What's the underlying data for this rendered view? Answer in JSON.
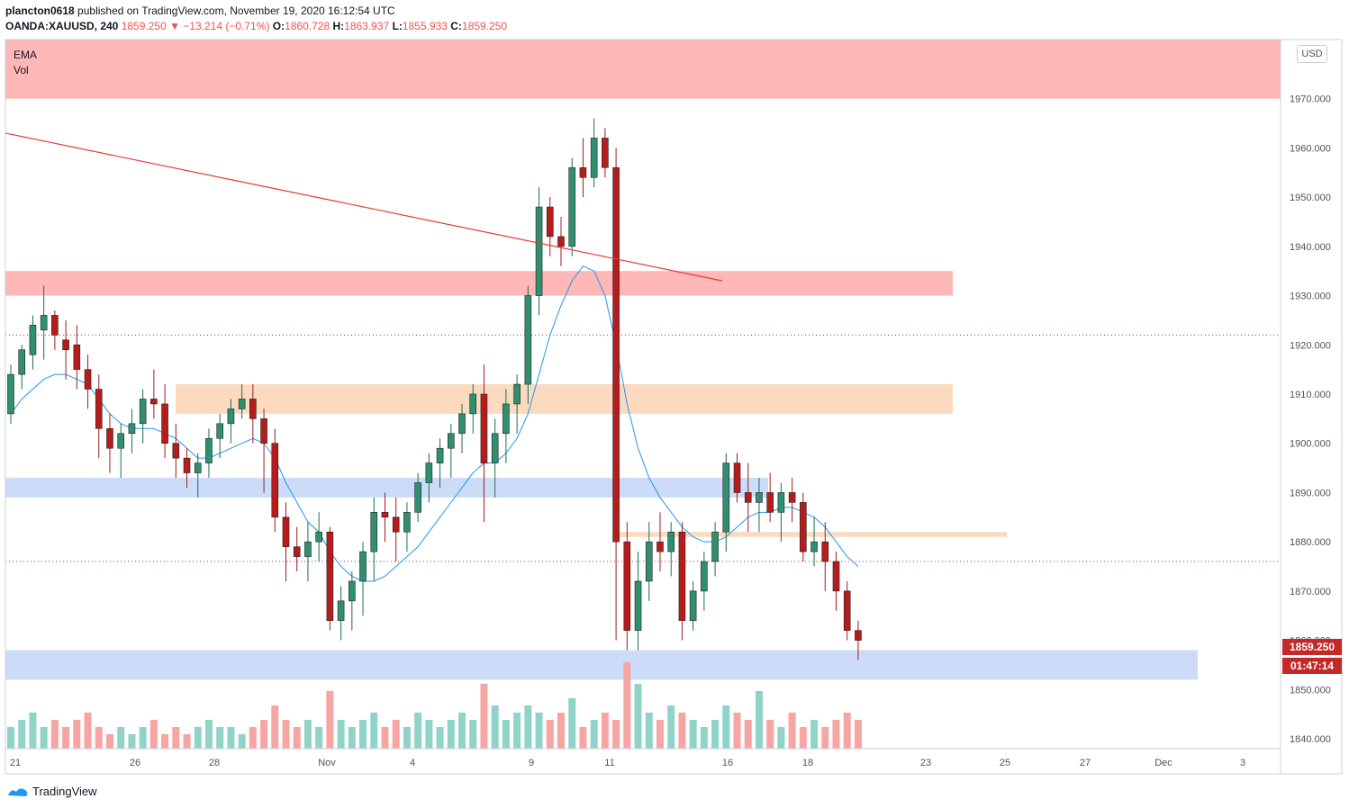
{
  "header": {
    "user": "plancton0618",
    "published": "published on TradingView.com, November 19, 2020 16:12:54 UTC",
    "symbol": "OANDA:XAUUSD, 240",
    "last": "1859.250",
    "change": "▼ −13.214 (−0.71%)",
    "o_label": "O:",
    "o_value": "1860.728",
    "h_label": "H:",
    "h_value": "1863.937",
    "l_label": "L:",
    "l_value": "1855.933",
    "c_label": "C:",
    "c_value": "1859.250"
  },
  "legend": {
    "ema": "EMA",
    "vol": "Vol"
  },
  "currency_button": "USD",
  "price_tag": "1859.250",
  "timer_tag": "01:47:14",
  "brand": "TradingView",
  "colors": {
    "up": "#26a69a",
    "down": "#ef5350",
    "ema": "#2196f3"
  },
  "chart_data": {
    "type": "candlestick",
    "timeframe": "240",
    "ylim": [
      1838,
      1982
    ],
    "yticks": [
      "1970.000",
      "1960.000",
      "1950.000",
      "1940.000",
      "1930.000",
      "1920.000",
      "1910.000",
      "1900.000",
      "1890.000",
      "1880.000",
      "1870.000",
      "1860.000",
      "1850.000",
      "1840.000"
    ],
    "xticks": [
      "21",
      "26",
      "28",
      "Nov",
      "4",
      "9",
      "11",
      "16",
      "18",
      "23",
      "25",
      "27",
      "Dec",
      "3"
    ],
    "candles": [
      [
        1906,
        1916,
        1904,
        1914
      ],
      [
        1914,
        1920,
        1911,
        1919
      ],
      [
        1918,
        1926,
        1915,
        1924
      ],
      [
        1923,
        1932,
        1917,
        1926
      ],
      [
        1926,
        1927,
        1919,
        1922
      ],
      [
        1921,
        1925,
        1913,
        1919
      ],
      [
        1920,
        1924,
        1911,
        1915
      ],
      [
        1915,
        1918,
        1907,
        1911
      ],
      [
        1911,
        1914,
        1897,
        1903
      ],
      [
        1903,
        1906,
        1894,
        1899
      ],
      [
        1899,
        1904,
        1893,
        1902
      ],
      [
        1902,
        1907,
        1898,
        1904
      ],
      [
        1904,
        1911,
        1900,
        1909
      ],
      [
        1909,
        1915,
        1905,
        1908
      ],
      [
        1908,
        1912,
        1897,
        1900
      ],
      [
        1900,
        1904,
        1893,
        1897
      ],
      [
        1897,
        1899,
        1891,
        1894
      ],
      [
        1894,
        1898,
        1889,
        1896
      ],
      [
        1896,
        1903,
        1893,
        1901
      ],
      [
        1901,
        1906,
        1897,
        1904
      ],
      [
        1904,
        1909,
        1900,
        1907
      ],
      [
        1907,
        1912,
        1905,
        1909
      ],
      [
        1909,
        1912,
        1900,
        1905
      ],
      [
        1905,
        1907,
        1890,
        1900
      ],
      [
        1900,
        1903,
        1882,
        1885
      ],
      [
        1885,
        1888,
        1872,
        1879
      ],
      [
        1879,
        1883,
        1874,
        1877
      ],
      [
        1877,
        1884,
        1872,
        1880
      ],
      [
        1880,
        1886,
        1876,
        1882
      ],
      [
        1882,
        1883,
        1862,
        1864
      ],
      [
        1864,
        1871,
        1860,
        1868
      ],
      [
        1868,
        1874,
        1862,
        1872
      ],
      [
        1872,
        1880,
        1865,
        1878
      ],
      [
        1878,
        1889,
        1872,
        1886
      ],
      [
        1886,
        1890,
        1880,
        1885
      ],
      [
        1885,
        1889,
        1876,
        1882
      ],
      [
        1882,
        1888,
        1878,
        1886
      ],
      [
        1886,
        1894,
        1884,
        1892
      ],
      [
        1892,
        1898,
        1888,
        1896
      ],
      [
        1896,
        1901,
        1891,
        1899
      ],
      [
        1899,
        1904,
        1893,
        1902
      ],
      [
        1902,
        1908,
        1898,
        1906
      ],
      [
        1906,
        1912,
        1902,
        1910
      ],
      [
        1910,
        1916,
        1884,
        1896
      ],
      [
        1896,
        1905,
        1889,
        1902
      ],
      [
        1902,
        1911,
        1896,
        1908
      ],
      [
        1908,
        1914,
        1902,
        1912
      ],
      [
        1912,
        1932,
        1908,
        1930
      ],
      [
        1930,
        1952,
        1926,
        1948
      ],
      [
        1948,
        1950,
        1938,
        1942
      ],
      [
        1942,
        1946,
        1936,
        1940
      ],
      [
        1940,
        1958,
        1938,
        1956
      ],
      [
        1956,
        1962,
        1950,
        1954
      ],
      [
        1954,
        1966,
        1952,
        1962
      ],
      [
        1962,
        1964,
        1954,
        1956
      ],
      [
        1956,
        1960,
        1860,
        1880
      ],
      [
        1880,
        1884,
        1858,
        1862
      ],
      [
        1862,
        1878,
        1858,
        1872
      ],
      [
        1872,
        1884,
        1868,
        1880
      ],
      [
        1880,
        1886,
        1874,
        1878
      ],
      [
        1878,
        1884,
        1873,
        1882
      ],
      [
        1882,
        1884,
        1860,
        1864
      ],
      [
        1864,
        1872,
        1862,
        1870
      ],
      [
        1870,
        1878,
        1866,
        1876
      ],
      [
        1876,
        1884,
        1873,
        1882
      ],
      [
        1882,
        1898,
        1878,
        1896
      ],
      [
        1896,
        1898,
        1888,
        1890
      ],
      [
        1890,
        1896,
        1882,
        1888
      ],
      [
        1888,
        1893,
        1882,
        1890
      ],
      [
        1890,
        1894,
        1884,
        1886
      ],
      [
        1886,
        1892,
        1880,
        1890
      ],
      [
        1890,
        1893,
        1884,
        1888
      ],
      [
        1888,
        1890,
        1876,
        1878
      ],
      [
        1878,
        1885,
        1875,
        1880
      ],
      [
        1880,
        1884,
        1870,
        1876
      ],
      [
        1876,
        1878,
        1866,
        1870
      ],
      [
        1870,
        1872,
        1860,
        1862
      ],
      [
        1862,
        1864,
        1856,
        1860
      ]
    ],
    "ema": [
      1906,
      1909,
      1911,
      1913,
      1914,
      1914,
      1913,
      1912,
      1909,
      1906,
      1904,
      1903,
      1903,
      1903,
      1902,
      1901,
      1899,
      1897,
      1897,
      1898,
      1899,
      1900,
      1901,
      1900,
      1897,
      1892,
      1888,
      1884,
      1882,
      1878,
      1875,
      1873,
      1872,
      1872,
      1873,
      1875,
      1877,
      1879,
      1882,
      1885,
      1888,
      1891,
      1894,
      1896,
      1896,
      1898,
      1901,
      1906,
      1914,
      1922,
      1928,
      1933,
      1936,
      1935,
      1930,
      1920,
      1908,
      1899,
      1893,
      1889,
      1886,
      1883,
      1881,
      1880,
      1880,
      1881,
      1883,
      1885,
      1886,
      1886,
      1887,
      1887,
      1886,
      1885,
      1883,
      1880,
      1877,
      1875
    ],
    "volume": [
      3,
      4,
      5,
      3,
      4,
      3,
      4,
      5,
      3,
      2,
      3,
      2,
      3,
      4,
      2,
      3,
      2,
      3,
      4,
      3,
      3,
      2,
      3,
      4,
      6,
      4,
      3,
      4,
      3,
      8,
      4,
      3,
      4,
      5,
      3,
      4,
      3,
      5,
      4,
      3,
      4,
      5,
      4,
      9,
      6,
      4,
      5,
      6,
      5,
      4,
      5,
      7,
      3,
      4,
      5,
      4,
      12,
      9,
      5,
      4,
      6,
      5,
      4,
      3,
      4,
      6,
      5,
      4,
      8,
      4,
      3,
      5,
      3,
      4,
      3,
      4,
      5,
      4
    ],
    "zones": [
      {
        "kind": "resistance",
        "from": 1970,
        "to": 1982,
        "color": "#ffb3b3"
      },
      {
        "kind": "resistance",
        "from": 1930,
        "to": 1935,
        "color": "#ffb3b3"
      },
      {
        "kind": "supply",
        "from": 1906,
        "to": 1912,
        "color": "#fbd8bc"
      },
      {
        "kind": "support",
        "from": 1889,
        "to": 1893,
        "color": "#c9daf8"
      },
      {
        "kind": "supply",
        "from": 1881,
        "to": 1882,
        "color": "#fbd8bc"
      },
      {
        "kind": "support",
        "from": 1852,
        "to": 1858,
        "color": "#c9daf8"
      }
    ],
    "trendline": {
      "from": [
        0,
        1963
      ],
      "to": [
        60,
        1933
      ]
    },
    "hlines": [
      1922,
      1876
    ],
    "last_price": 1859.25
  }
}
